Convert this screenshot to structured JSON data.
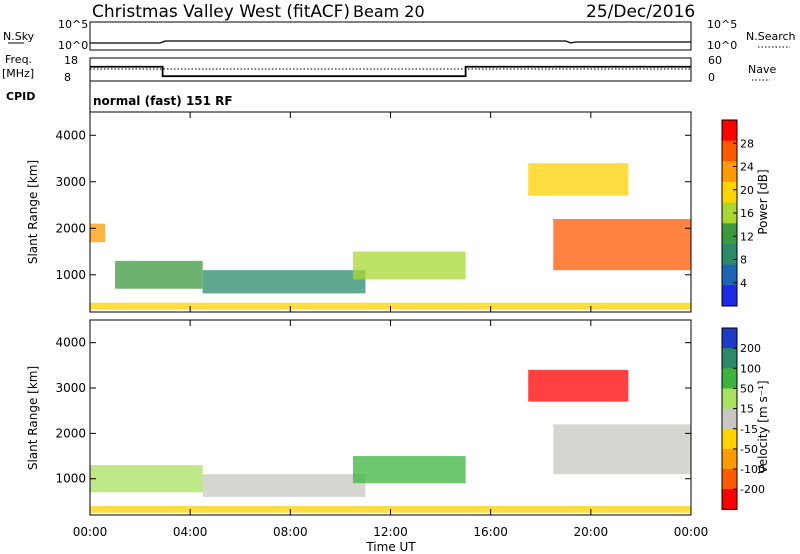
{
  "header": {
    "station": "Christmas Valley West (fitACF)",
    "beam": "Beam 20",
    "date": "25/Dec/2016"
  },
  "top_panels": {
    "nsky_label": "N.Sky",
    "nsky_ticks": [
      "10^5",
      "10^0"
    ],
    "nsearch_label": "N.Search",
    "nsearch_ticks": [
      "10^5",
      "10^0"
    ],
    "freq_label_1": "Freq.",
    "freq_label_2": "[MHz]",
    "freq_ticks": [
      "18",
      "8"
    ],
    "nave_label": "Nave",
    "nave_ticks": [
      "60",
      "0"
    ],
    "cpid_label": "CPID",
    "cpid_text": "normal (fast) 151 RF",
    "freq_steps": [
      {
        "start_h": 0.0,
        "end_h": 2.9,
        "mhz": 14.2
      },
      {
        "start_h": 2.9,
        "end_h": 15.0,
        "mhz": 10.1
      },
      {
        "start_h": 15.0,
        "end_h": 24.0,
        "mhz": 14.2
      }
    ]
  },
  "chart_data": [
    {
      "type": "heatmap",
      "name": "power",
      "ylabel": "Slant Range [km]",
      "yticks": [
        "4000",
        "3000",
        "2000",
        "1000"
      ],
      "ylim": [
        200,
        4500
      ],
      "xticks": [
        "00:00",
        "04:00",
        "08:00",
        "12:00",
        "16:00",
        "20:00",
        "00:00"
      ],
      "xlim_hours": [
        0,
        24
      ],
      "colorbar": {
        "label": "Power [dB]",
        "ticks": [
          "28",
          "24",
          "20",
          "16",
          "12",
          "8",
          "4"
        ],
        "colors": [
          "#ff0000",
          "#ff5a00",
          "#ff9a00",
          "#ffd200",
          "#a8d830",
          "#3c9a3c",
          "#2a8a6a",
          "#1e64b4",
          "#1e28e6"
        ]
      },
      "regions": [
        {
          "t0": 0.0,
          "t1": 0.6,
          "r0": 1700,
          "r1": 2100,
          "color": "#ff9a00"
        },
        {
          "t0": 1.0,
          "t1": 4.5,
          "r0": 700,
          "r1": 1300,
          "color": "#3c9a3c"
        },
        {
          "t0": 4.5,
          "t1": 11.0,
          "r0": 600,
          "r1": 1100,
          "color": "#2a8a6a"
        },
        {
          "t0": 10.5,
          "t1": 15.0,
          "r0": 900,
          "r1": 1500,
          "color": "#a8d830"
        },
        {
          "t0": 0.0,
          "t1": 24.0,
          "r0": 250,
          "r1": 400,
          "color": "#ffd200"
        },
        {
          "t0": 17.5,
          "t1": 21.5,
          "r0": 2700,
          "r1": 3400,
          "color": "#ffd200"
        },
        {
          "t0": 18.5,
          "t1": 24.0,
          "r0": 1100,
          "r1": 2200,
          "color": "#ff5a00"
        }
      ]
    },
    {
      "type": "heatmap",
      "name": "velocity",
      "ylabel": "Slant Range [km]",
      "yticks": [
        "4000",
        "3000",
        "2000",
        "1000"
      ],
      "ylim": [
        200,
        4500
      ],
      "xticks": [
        "00:00",
        "04:00",
        "08:00",
        "12:00",
        "16:00",
        "20:00",
        "00:00"
      ],
      "xlabel": "Time UT",
      "xlim_hours": [
        0,
        24
      ],
      "colorbar": {
        "label": "Velocity [m s⁻¹]",
        "ticks": [
          "200",
          "100",
          "50",
          "15",
          "-15",
          "-50",
          "-100",
          "-200"
        ],
        "colors": [
          "#1e3cc8",
          "#2a8a6a",
          "#3cb43c",
          "#a8e060",
          "#c8c8c0",
          "#ffd200",
          "#ff9a00",
          "#ff5a00",
          "#ff0000"
        ]
      },
      "regions": [
        {
          "t0": 0.0,
          "t1": 4.5,
          "r0": 700,
          "r1": 1300,
          "color": "#a8e060"
        },
        {
          "t0": 4.5,
          "t1": 11.0,
          "r0": 600,
          "r1": 1100,
          "color": "#c8c8c0"
        },
        {
          "t0": 10.5,
          "t1": 15.0,
          "r0": 900,
          "r1": 1500,
          "color": "#3cb43c"
        },
        {
          "t0": 0.0,
          "t1": 24.0,
          "r0": 250,
          "r1": 400,
          "color": "#ffd200"
        },
        {
          "t0": 17.5,
          "t1": 21.5,
          "r0": 2700,
          "r1": 3400,
          "color": "#ff0000"
        },
        {
          "t0": 18.5,
          "t1": 24.0,
          "r0": 1100,
          "r1": 2200,
          "color": "#c8c8c0"
        }
      ]
    }
  ]
}
